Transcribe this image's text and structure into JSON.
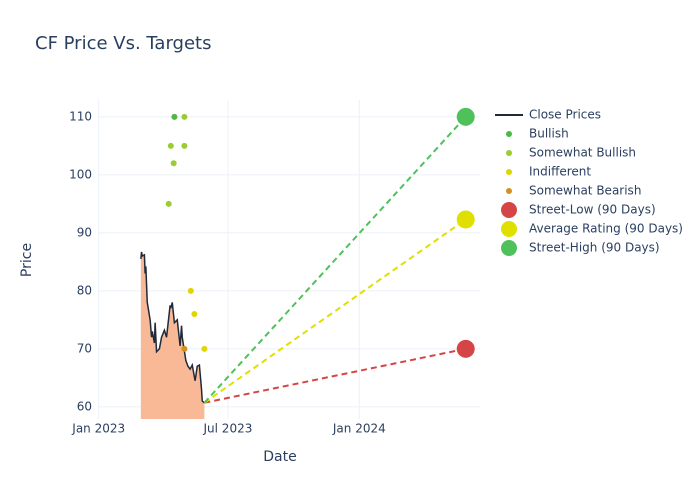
{
  "chart_data": {
    "type": "line",
    "title": "CF Price Vs. Targets",
    "x_label": "Date",
    "y_label": "Price",
    "xlim": [
      "2022-12-31",
      "2024-06-18"
    ],
    "xticks": [
      {
        "value": "2023-01-01",
        "label": "Jan 2023"
      },
      {
        "value": "2023-07-01",
        "label": "Jul 2023"
      },
      {
        "value": "2024-01-01",
        "label": "Jan 2024"
      }
    ],
    "ylim": [
      57.9,
      112.9
    ],
    "yticks": [
      60,
      70,
      80,
      90,
      100,
      110
    ],
    "grid": true,
    "series": [
      {
        "name": "Close Prices",
        "color": "#1f2a3a",
        "fill": "#f9b996",
        "style": "area-line",
        "x": [
          "2023-03-01",
          "2023-03-02",
          "2023-03-03",
          "2023-03-06",
          "2023-03-07",
          "2023-03-08",
          "2023-03-10",
          "2023-03-14",
          "2023-03-16",
          "2023-03-17",
          "2023-03-20",
          "2023-03-21",
          "2023-03-23",
          "2023-03-27",
          "2023-03-30",
          "2023-04-03",
          "2023-04-06",
          "2023-04-11",
          "2023-04-12",
          "2023-04-14",
          "2023-04-17",
          "2023-04-21",
          "2023-04-25",
          "2023-04-27",
          "2023-04-28",
          "2023-05-03",
          "2023-05-06",
          "2023-05-09",
          "2023-05-12",
          "2023-05-16",
          "2023-05-19",
          "2023-05-22",
          "2023-05-25",
          "2023-05-26",
          "2023-05-29"
        ],
        "values": [
          85.5,
          86.7,
          86.0,
          86.2,
          83.0,
          84.2,
          78.0,
          75.0,
          72.0,
          73.0,
          71.0,
          74.5,
          69.5,
          70.0,
          72.0,
          73.2,
          72.0,
          77.5,
          77.0,
          78.0,
          74.5,
          75.0,
          70.5,
          74.0,
          72.0,
          68.0,
          67.0,
          66.5,
          67.2,
          64.5,
          67.0,
          67.2,
          63.0,
          61.0,
          60.7
        ]
      },
      {
        "name": "Bullish",
        "color": "#4cb848",
        "style": "markers",
        "x": [
          "2023-04-17"
        ],
        "values": [
          110
        ]
      },
      {
        "name": "Somewhat Bullish",
        "color": "#9acd32",
        "style": "markers",
        "x": [
          "2023-04-09",
          "2023-04-12",
          "2023-04-16",
          "2023-05-01",
          "2023-05-01"
        ],
        "values": [
          95,
          105,
          102,
          110,
          105
        ]
      },
      {
        "name": "Indifferent",
        "color": "#e0d500",
        "style": "markers",
        "x": [
          "2023-05-10",
          "2023-05-15",
          "2023-05-29"
        ],
        "values": [
          80,
          76,
          70
        ]
      },
      {
        "name": "Somewhat Bearish",
        "color": "#d4901c",
        "style": "markers",
        "x": [
          "2023-05-01"
        ],
        "values": [
          70
        ]
      },
      {
        "name": "Street-Low (90 Days)",
        "color": "#d64545",
        "style": "target",
        "x": [
          "2023-05-29",
          "2024-05-29"
        ],
        "values": [
          60.7,
          70
        ]
      },
      {
        "name": "Average Rating (90 Days)",
        "color": "#e0e000",
        "style": "target",
        "x": [
          "2023-05-29",
          "2024-05-29"
        ],
        "values": [
          60.7,
          92.3
        ]
      },
      {
        "name": "Street-High (90 Days)",
        "color": "#4fc15b",
        "style": "target",
        "x": [
          "2023-05-29",
          "2024-05-29"
        ],
        "values": [
          60.7,
          110
        ]
      }
    ]
  }
}
